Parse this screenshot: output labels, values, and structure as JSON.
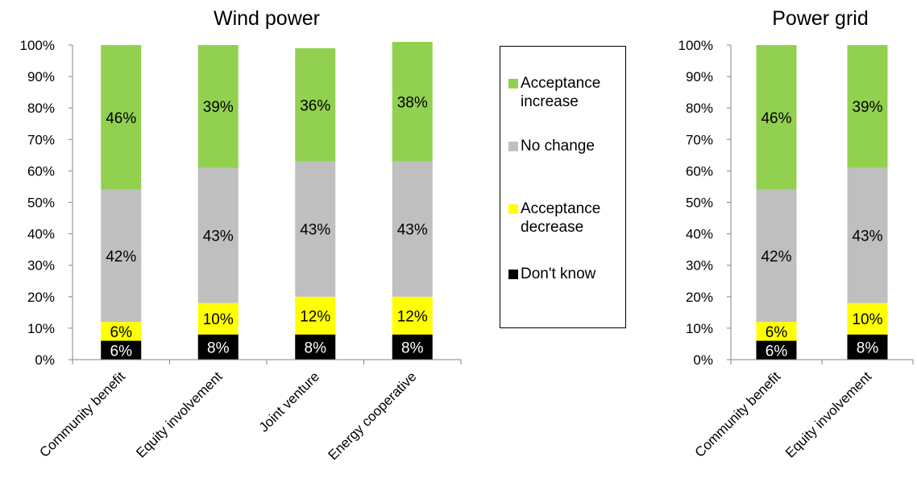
{
  "legend": [
    {
      "key": "increase",
      "label": "Acceptance\nincrease",
      "color": "#92d050"
    },
    {
      "key": "nochange",
      "label": "No change",
      "color": "#bfbfbf"
    },
    {
      "key": "decrease",
      "label": "Acceptance\ndecrease",
      "color": "#ffff00"
    },
    {
      "key": "dontknow",
      "label": "Don't know",
      "color": "#000000"
    }
  ],
  "chart_data": [
    {
      "type": "bar",
      "stacked": true,
      "title": "Wind power",
      "categories": [
        "Community benefit",
        "Equity involvement",
        "Joint venture",
        "Energy cooperative"
      ],
      "ylim": [
        0,
        100
      ],
      "yticks": [
        "0%",
        "10%",
        "20%",
        "30%",
        "40%",
        "50%",
        "60%",
        "70%",
        "80%",
        "90%",
        "100%"
      ],
      "grid": false,
      "legend_position": "right",
      "series": [
        {
          "name": "Don't know",
          "color": "#000000",
          "values": [
            6,
            8,
            8,
            8
          ],
          "labels": [
            "6%",
            "8%",
            "8%",
            "8%"
          ]
        },
        {
          "name": "Acceptance decrease",
          "color": "#ffff00",
          "values": [
            6,
            10,
            12,
            12
          ],
          "labels": [
            "6%",
            "10%",
            "12%",
            "12%"
          ]
        },
        {
          "name": "No change",
          "color": "#bfbfbf",
          "values": [
            42,
            43,
            43,
            43
          ],
          "labels": [
            "42%",
            "43%",
            "43%",
            "43%"
          ]
        },
        {
          "name": "Acceptance increase",
          "color": "#92d050",
          "values": [
            46,
            39,
            36,
            38
          ],
          "labels": [
            "46%",
            "39%",
            "36%",
            "38%"
          ]
        }
      ]
    },
    {
      "type": "bar",
      "stacked": true,
      "title": "Power grid",
      "categories": [
        "Community benefit",
        "Equity involvement"
      ],
      "ylim": [
        0,
        100
      ],
      "yticks": [
        "0%",
        "10%",
        "20%",
        "30%",
        "40%",
        "50%",
        "60%",
        "70%",
        "80%",
        "90%",
        "100%"
      ],
      "grid": false,
      "series": [
        {
          "name": "Don't know",
          "color": "#000000",
          "values": [
            6,
            8
          ],
          "labels": [
            "6%",
            "8%"
          ]
        },
        {
          "name": "Acceptance decrease",
          "color": "#ffff00",
          "values": [
            6,
            10
          ],
          "labels": [
            "6%",
            "10%"
          ]
        },
        {
          "name": "No change",
          "color": "#bfbfbf",
          "values": [
            42,
            43
          ],
          "labels": [
            "42%",
            "43%"
          ]
        },
        {
          "name": "Acceptance increase",
          "color": "#92d050",
          "values": [
            46,
            39
          ],
          "labels": [
            "46%",
            "39%"
          ]
        }
      ]
    }
  ]
}
